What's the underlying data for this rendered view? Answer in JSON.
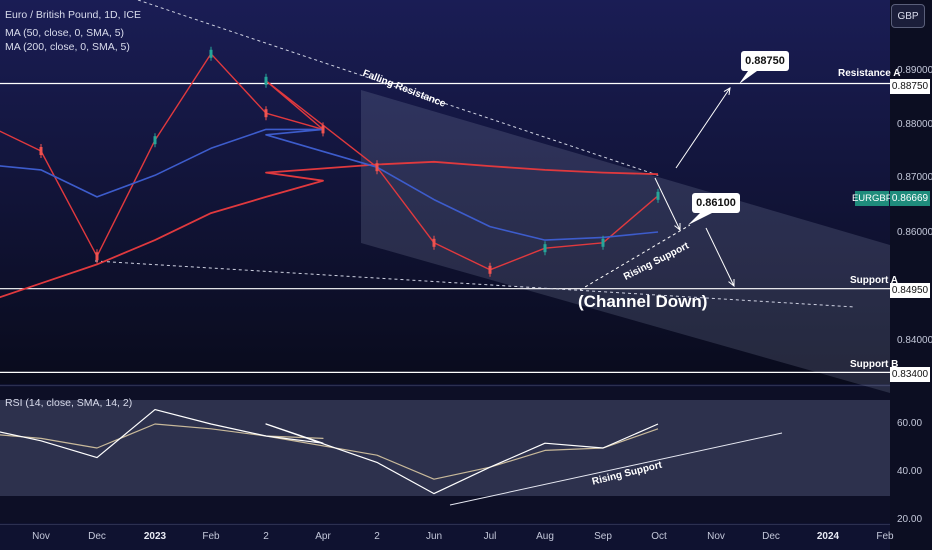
{
  "header": {
    "title": "Euro / British Pound, 1D, ICE",
    "ma50": "MA (50, close, 0, SMA, 5)",
    "ma200": "MA (200, close, 0, SMA, 5)",
    "currency": "GBP"
  },
  "chart_data": [
    {
      "type": "line",
      "title": "Euro / British Pound, 1D, ICE",
      "x_ticks": [
        "Nov",
        "Dec",
        "2023",
        "Feb",
        "2",
        "Apr",
        "2",
        "Jun",
        "Jul",
        "Aug",
        "Sep",
        "Oct",
        "Nov",
        "Dec",
        "2024",
        "Feb"
      ],
      "y_ticks": [
        "0.89000",
        "0.88000",
        "0.87000",
        "0.86000",
        "0.85000",
        "0.84000"
      ],
      "ylim": [
        0.8325,
        0.9015
      ],
      "series": [
        {
          "name": "MA (50, close, 0, SMA, 5)",
          "color": "#3d5ccc",
          "points": [
            [
              "Oct",
              0.8725
            ],
            [
              "Nov",
              0.8715
            ],
            [
              "Dec",
              0.8665
            ],
            [
              "2023",
              0.8705
            ],
            [
              "Feb",
              0.8755
            ],
            [
              "2",
              0.879
            ],
            [
              "Apr",
              0.879
            ],
            [
              "2",
              0.878
            ],
            [
              "May",
              0.872
            ],
            [
              "Jun",
              0.866
            ],
            [
              "Jul",
              0.861
            ],
            [
              "Aug",
              0.8585
            ],
            [
              "Sep",
              0.859
            ],
            [
              "Oct",
              0.86
            ]
          ]
        },
        {
          "name": "MA (200, close, 0, SMA, 5)",
          "color": "#e0393e",
          "points": [
            [
              "Oct",
              0.847
            ],
            [
              "Nov",
              0.8505
            ],
            [
              "Dec",
              0.854
            ],
            [
              "2023",
              0.8585
            ],
            [
              "Feb",
              0.8635
            ],
            [
              "2",
              0.8665
            ],
            [
              "Apr",
              0.8695
            ],
            [
              "2",
              0.871
            ],
            [
              "May",
              0.8725
            ],
            [
              "Jun",
              0.873
            ],
            [
              "Jul",
              0.8722
            ],
            [
              "Aug",
              0.8715
            ],
            [
              "Sep",
              0.871
            ],
            [
              "Oct",
              0.8707
            ]
          ]
        },
        {
          "name": "EURGBP",
          "color": "#e0393e",
          "points": [
            [
              "Oct",
              0.88
            ],
            [
              "Nov",
              0.875
            ],
            [
              "Dec",
              0.8555
            ],
            [
              "2023",
              0.877
            ],
            [
              "Feb",
              0.893
            ],
            [
              "2",
              0.882
            ],
            [
              "Apr",
              0.879
            ],
            [
              "2",
              0.888
            ],
            [
              "May",
              0.872
            ],
            [
              "Jun",
              0.858
            ],
            [
              "Jul",
              0.853
            ],
            [
              "Aug",
              0.857
            ],
            [
              "Sep",
              0.858
            ],
            [
              "Oct",
              0.8667
            ]
          ]
        }
      ],
      "last_price": {
        "symbol": "EURGBP",
        "value": "0.86669"
      },
      "levels": [
        {
          "label": "Resistance A",
          "value": 0.8875,
          "price_label": "0.88750"
        },
        {
          "label": "Support A",
          "value": 0.8495,
          "price_label": "0.84950"
        },
        {
          "label": "Support B",
          "value": 0.834,
          "price_label": "0.83400"
        }
      ],
      "annotations": {
        "falling_resistance": "Falling Resistance",
        "rising_support": "Rising Support",
        "channel": "(Channel Down)",
        "target_up": "0.88750",
        "pivot": "0.86100"
      }
    },
    {
      "type": "line",
      "title": "RSI (14, close, SMA, 14, 2)",
      "y_ticks": [
        "60.00",
        "40.00",
        "20.00"
      ],
      "ylim": [
        17.5,
        72
      ],
      "band": [
        30,
        70
      ],
      "series": [
        {
          "name": "RSI",
          "color": "#ffffff",
          "points": [
            [
              "Oct",
              58
            ],
            [
              "Nov",
              53
            ],
            [
              "Dec",
              46
            ],
            [
              "2023",
              66
            ],
            [
              "Feb",
              60
            ],
            [
              "2",
              55
            ],
            [
              "Apr",
              52
            ],
            [
              "2",
              60
            ],
            [
              "May",
              44
            ],
            [
              "Jun",
              31
            ],
            [
              "Jul",
              42
            ],
            [
              "Aug",
              52
            ],
            [
              "Sep",
              50
            ],
            [
              "Oct",
              60
            ]
          ]
        },
        {
          "name": "RSI SMA",
          "color": "#c8b99a",
          "points": [
            [
              "Oct",
              56
            ],
            [
              "Nov",
              54
            ],
            [
              "Dec",
              50
            ],
            [
              "2023",
              60
            ],
            [
              "Feb",
              58
            ],
            [
              "2",
              55
            ],
            [
              "Apr",
              54
            ],
            [
              "2",
              55
            ],
            [
              "May",
              47
            ],
            [
              "Jun",
              37
            ],
            [
              "Jul",
              42
            ],
            [
              "Aug",
              49
            ],
            [
              "Sep",
              50
            ],
            [
              "Oct",
              58
            ]
          ]
        }
      ],
      "annotations": {
        "rising_support": "Rising Support"
      }
    }
  ]
}
